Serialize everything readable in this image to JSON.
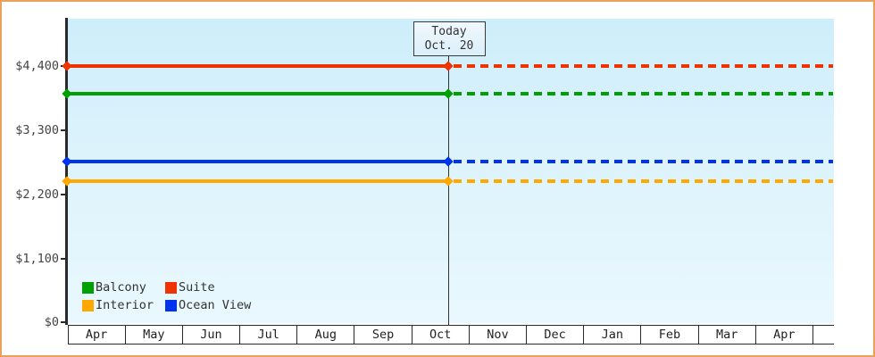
{
  "frame": {
    "border_color": "#eba157",
    "background": "#ffffff"
  },
  "today_box": {
    "title": "Today",
    "date": "Oct. 20"
  },
  "y_axis": {
    "ticks": [
      {
        "label": "$4,400",
        "value": 4400
      },
      {
        "label": "$3,300",
        "value": 3300
      },
      {
        "label": "$2,200",
        "value": 2200
      },
      {
        "label": "$1,100",
        "value": 1100
      },
      {
        "label": "$0",
        "value": 0
      }
    ]
  },
  "x_axis": {
    "months": [
      "Apr",
      "May",
      "Jun",
      "Jul",
      "Aug",
      "Sep",
      "Oct",
      "Nov",
      "Dec",
      "Jan",
      "Feb",
      "Mar",
      "Apr"
    ]
  },
  "legend": {
    "items": [
      {
        "label": "Balcony",
        "color": "#00a000"
      },
      {
        "label": "Suite",
        "color": "#ee3300"
      },
      {
        "label": "Interior",
        "color": "#ffa800"
      },
      {
        "label": "Ocean View",
        "color": "#0033ee"
      }
    ]
  },
  "chart_data": {
    "type": "line",
    "title": "",
    "categories": [
      "Apr",
      "May",
      "Jun",
      "Jul",
      "Aug",
      "Sep",
      "Oct",
      "Nov",
      "Dec",
      "Jan",
      "Feb",
      "Mar",
      "Apr"
    ],
    "series": [
      {
        "name": "Suite",
        "color": "#ee3300",
        "value": 4400,
        "style_before_today": "solid",
        "style_after_today": "dashed"
      },
      {
        "name": "Balcony",
        "color": "#00a000",
        "value": 3930,
        "style_before_today": "solid",
        "style_after_today": "dashed"
      },
      {
        "name": "Ocean View",
        "color": "#0033ee",
        "value": 2760,
        "style_before_today": "solid",
        "style_after_today": "dashed"
      },
      {
        "name": "Interior",
        "color": "#ffa800",
        "value": 2420,
        "style_before_today": "solid",
        "style_after_today": "dashed"
      }
    ],
    "annotations": [
      {
        "type": "vline",
        "label": "Today",
        "date": "Oct. 20",
        "at_month": "Oct",
        "month_fraction": 0.65
      }
    ],
    "ytick_values": [
      0,
      1100,
      2200,
      3300,
      4400
    ],
    "ylim": [
      0,
      5200
    ],
    "grid": false,
    "legend_position": "bottom-left"
  }
}
